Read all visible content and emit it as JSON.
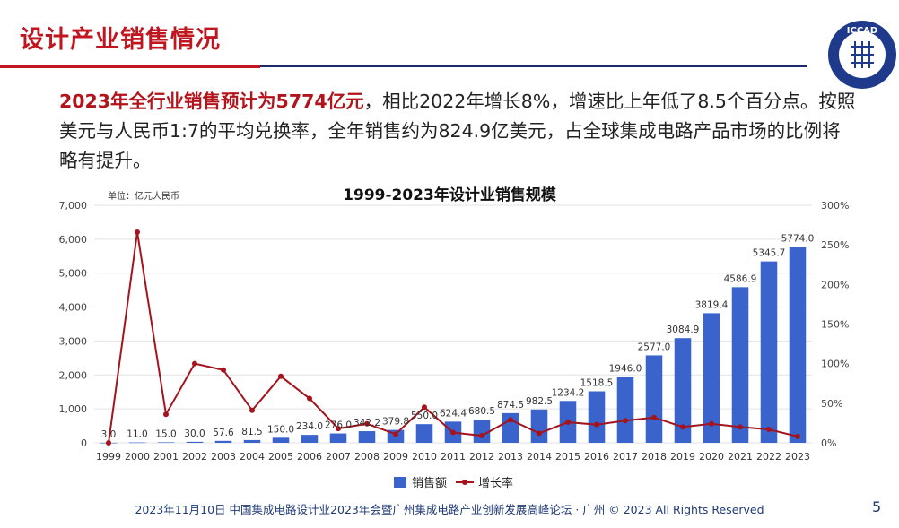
{
  "slide": {
    "title": "设计产业销售情况",
    "para_highlight": "2023年全行业销售预计为5774亿元",
    "para_rest": "，相比2022年增长8%，增速比上年低了8.5个百分点。按照美元与人民币1:7的平均兑换率，全年销售约为824.9亿美元，占全球集成电路产品市场的比例将略有提升。",
    "footer": "2023年11月10日 中国集成电路设计业2023年会暨广州集成电路产业创新发展高峰论坛 · 广州 © 2023 All Rights Reserved",
    "page_number": "5",
    "logo_text": "ICCAD",
    "colors": {
      "title_red": "#c0161f",
      "navy": "#1a2a6c",
      "bar_blue": "#3a64cc",
      "line_red": "#a3141e"
    }
  },
  "chart_data": {
    "type": "bar",
    "title": "1999-2023年设计业销售规模",
    "unit_label": "单位：亿元人民币",
    "categories": [
      "1999",
      "2000",
      "2001",
      "2002",
      "2003",
      "2004",
      "2005",
      "2006",
      "2007",
      "2008",
      "2009",
      "2010",
      "2011",
      "2012",
      "2013",
      "2014",
      "2015",
      "2016",
      "2017",
      "2018",
      "2019",
      "2020",
      "2021",
      "2022",
      "2023"
    ],
    "series": [
      {
        "name": "销售额",
        "type": "bar",
        "axis": "left",
        "values": [
          3.0,
          11.0,
          15.0,
          30.0,
          57.6,
          81.5,
          150.0,
          234.0,
          276.0,
          342.2,
          379.8,
          550.0,
          624.4,
          680.5,
          874.5,
          982.5,
          1234.2,
          1518.5,
          1946.0,
          2577.0,
          3084.9,
          3819.4,
          4586.9,
          5345.7,
          5774.0
        ],
        "data_labels": [
          "3.0",
          "11.0",
          "15.0",
          "30.0",
          "57.6",
          "81.5",
          "150.0",
          "234.0",
          "276.0",
          "342.2",
          "379.8",
          "550.0",
          "624.4",
          "680.5",
          "874.5",
          "982.5",
          "1234.2",
          "1518.5",
          "1946.0",
          "2577.0",
          "3084.9",
          "3819.4",
          "4586.9",
          "5345.7",
          "5774.0"
        ]
      },
      {
        "name": "增长率",
        "type": "line",
        "axis": "right",
        "values": [
          0,
          266,
          36,
          100,
          92,
          41,
          84,
          56,
          18,
          24,
          11,
          45,
          13,
          9,
          29,
          12,
          26,
          23,
          28,
          32,
          20,
          24,
          20,
          17,
          8
        ]
      }
    ],
    "y_left": {
      "min": 0,
      "max": 7000,
      "ticks": [
        "0",
        "1,000",
        "2,000",
        "3,000",
        "4,000",
        "5,000",
        "6,000",
        "7,000"
      ]
    },
    "y_right": {
      "min": 0,
      "max": 300,
      "ticks": [
        "0%",
        "50%",
        "100%",
        "150%",
        "200%",
        "250%",
        "300%"
      ]
    },
    "grid": true,
    "legend": "bottom-center"
  }
}
